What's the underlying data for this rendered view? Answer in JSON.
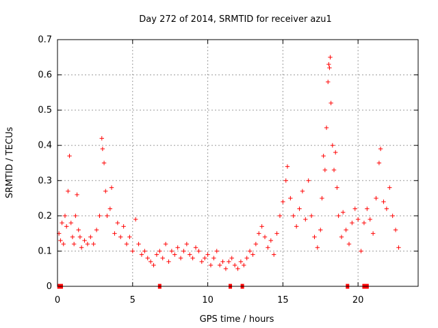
{
  "chart_data": {
    "type": "scatter",
    "title": "Day 272 of 2014, SRMTID for receiver azu1",
    "xlabel": "GPS time / hours",
    "ylabel": "SRMTID / TECUs",
    "xlim": [
      0,
      24
    ],
    "ylim": [
      0,
      0.7
    ],
    "xticks": [
      0,
      5,
      10,
      15,
      20
    ],
    "yticks": [
      0,
      0.1,
      0.2,
      0.3,
      0.4,
      0.5,
      0.6,
      0.7
    ],
    "xtick_labels": [
      "0",
      "5",
      "10",
      "15",
      "20"
    ],
    "ytick_labels": [
      "0",
      "0.1",
      "0.2",
      "0.3",
      "0.4",
      "0.5",
      "0.6",
      "0.7"
    ],
    "grid": true,
    "marker": "+",
    "color": "#ff0000",
    "series": [
      {
        "name": "azu1",
        "points": [
          [
            0.1,
            0.15
          ],
          [
            0.2,
            0.13
          ],
          [
            0.3,
            0.18
          ],
          [
            0.4,
            0.12
          ],
          [
            0.5,
            0.2
          ],
          [
            0.6,
            0.17
          ],
          [
            0.7,
            0.27
          ],
          [
            0.8,
            0.37
          ],
          [
            0.9,
            0.18
          ],
          [
            1.0,
            0.14
          ],
          [
            1.1,
            0.12
          ],
          [
            1.2,
            0.2
          ],
          [
            1.3,
            0.26
          ],
          [
            1.4,
            0.16
          ],
          [
            1.5,
            0.14
          ],
          [
            1.6,
            0.11
          ],
          [
            1.8,
            0.13
          ],
          [
            2.0,
            0.12
          ],
          [
            2.2,
            0.14
          ],
          [
            2.4,
            0.12
          ],
          [
            2.6,
            0.16
          ],
          [
            2.8,
            0.2
          ],
          [
            2.95,
            0.42
          ],
          [
            3.0,
            0.39
          ],
          [
            3.1,
            0.35
          ],
          [
            3.2,
            0.27
          ],
          [
            3.3,
            0.2
          ],
          [
            3.5,
            0.22
          ],
          [
            3.6,
            0.28
          ],
          [
            3.8,
            0.15
          ],
          [
            4.0,
            0.18
          ],
          [
            4.2,
            0.14
          ],
          [
            4.4,
            0.17
          ],
          [
            4.6,
            0.12
          ],
          [
            4.8,
            0.14
          ],
          [
            5.0,
            0.1
          ],
          [
            5.2,
            0.19
          ],
          [
            5.4,
            0.12
          ],
          [
            5.6,
            0.09
          ],
          [
            5.8,
            0.1
          ],
          [
            6.0,
            0.08
          ],
          [
            6.2,
            0.07
          ],
          [
            6.4,
            0.06
          ],
          [
            6.6,
            0.09
          ],
          [
            6.8,
            0.1
          ],
          [
            7.0,
            0.08
          ],
          [
            7.2,
            0.12
          ],
          [
            7.4,
            0.07
          ],
          [
            7.6,
            0.1
          ],
          [
            7.8,
            0.09
          ],
          [
            8.0,
            0.11
          ],
          [
            8.2,
            0.08
          ],
          [
            8.4,
            0.1
          ],
          [
            8.6,
            0.12
          ],
          [
            8.8,
            0.09
          ],
          [
            9.0,
            0.08
          ],
          [
            9.2,
            0.11
          ],
          [
            9.4,
            0.1
          ],
          [
            9.6,
            0.07
          ],
          [
            9.8,
            0.08
          ],
          [
            10.0,
            0.09
          ],
          [
            10.2,
            0.06
          ],
          [
            10.4,
            0.08
          ],
          [
            10.6,
            0.1
          ],
          [
            10.8,
            0.06
          ],
          [
            11.0,
            0.07
          ],
          [
            11.2,
            0.05
          ],
          [
            11.4,
            0.07
          ],
          [
            11.6,
            0.08
          ],
          [
            11.8,
            0.06
          ],
          [
            12.0,
            0.05
          ],
          [
            12.2,
            0.07
          ],
          [
            12.4,
            0.06
          ],
          [
            12.6,
            0.08
          ],
          [
            12.8,
            0.1
          ],
          [
            13.0,
            0.09
          ],
          [
            13.2,
            0.12
          ],
          [
            13.4,
            0.15
          ],
          [
            13.6,
            0.17
          ],
          [
            13.8,
            0.14
          ],
          [
            14.0,
            0.11
          ],
          [
            14.2,
            0.13
          ],
          [
            14.4,
            0.09
          ],
          [
            14.6,
            0.15
          ],
          [
            14.8,
            0.2
          ],
          [
            15.0,
            0.24
          ],
          [
            15.2,
            0.3
          ],
          [
            15.3,
            0.34
          ],
          [
            15.5,
            0.25
          ],
          [
            15.7,
            0.2
          ],
          [
            15.9,
            0.17
          ],
          [
            16.1,
            0.22
          ],
          [
            16.3,
            0.27
          ],
          [
            16.5,
            0.19
          ],
          [
            16.7,
            0.3
          ],
          [
            16.9,
            0.2
          ],
          [
            17.1,
            0.14
          ],
          [
            17.3,
            0.11
          ],
          [
            17.5,
            0.16
          ],
          [
            17.6,
            0.25
          ],
          [
            17.7,
            0.37
          ],
          [
            17.8,
            0.33
          ],
          [
            17.9,
            0.45
          ],
          [
            18.0,
            0.58
          ],
          [
            18.05,
            0.63
          ],
          [
            18.1,
            0.62
          ],
          [
            18.15,
            0.65
          ],
          [
            18.2,
            0.52
          ],
          [
            18.3,
            0.4
          ],
          [
            18.4,
            0.33
          ],
          [
            18.5,
            0.38
          ],
          [
            18.6,
            0.28
          ],
          [
            18.7,
            0.2
          ],
          [
            18.9,
            0.14
          ],
          [
            19.0,
            0.21
          ],
          [
            19.2,
            0.16
          ],
          [
            19.4,
            0.12
          ],
          [
            19.6,
            0.18
          ],
          [
            19.8,
            0.22
          ],
          [
            20.0,
            0.19
          ],
          [
            20.2,
            0.1
          ],
          [
            20.4,
            0.18
          ],
          [
            20.6,
            0.22
          ],
          [
            20.8,
            0.19
          ],
          [
            21.0,
            0.15
          ],
          [
            21.2,
            0.25
          ],
          [
            21.4,
            0.35
          ],
          [
            21.5,
            0.39
          ],
          [
            21.7,
            0.24
          ],
          [
            21.9,
            0.22
          ],
          [
            22.1,
            0.28
          ],
          [
            22.3,
            0.2
          ],
          [
            22.5,
            0.16
          ],
          [
            22.7,
            0.11
          ]
        ]
      }
    ],
    "zero_points_x": [
      0.1,
      0.25,
      6.8,
      11.5,
      12.3,
      19.3,
      20.4,
      20.6
    ]
  }
}
